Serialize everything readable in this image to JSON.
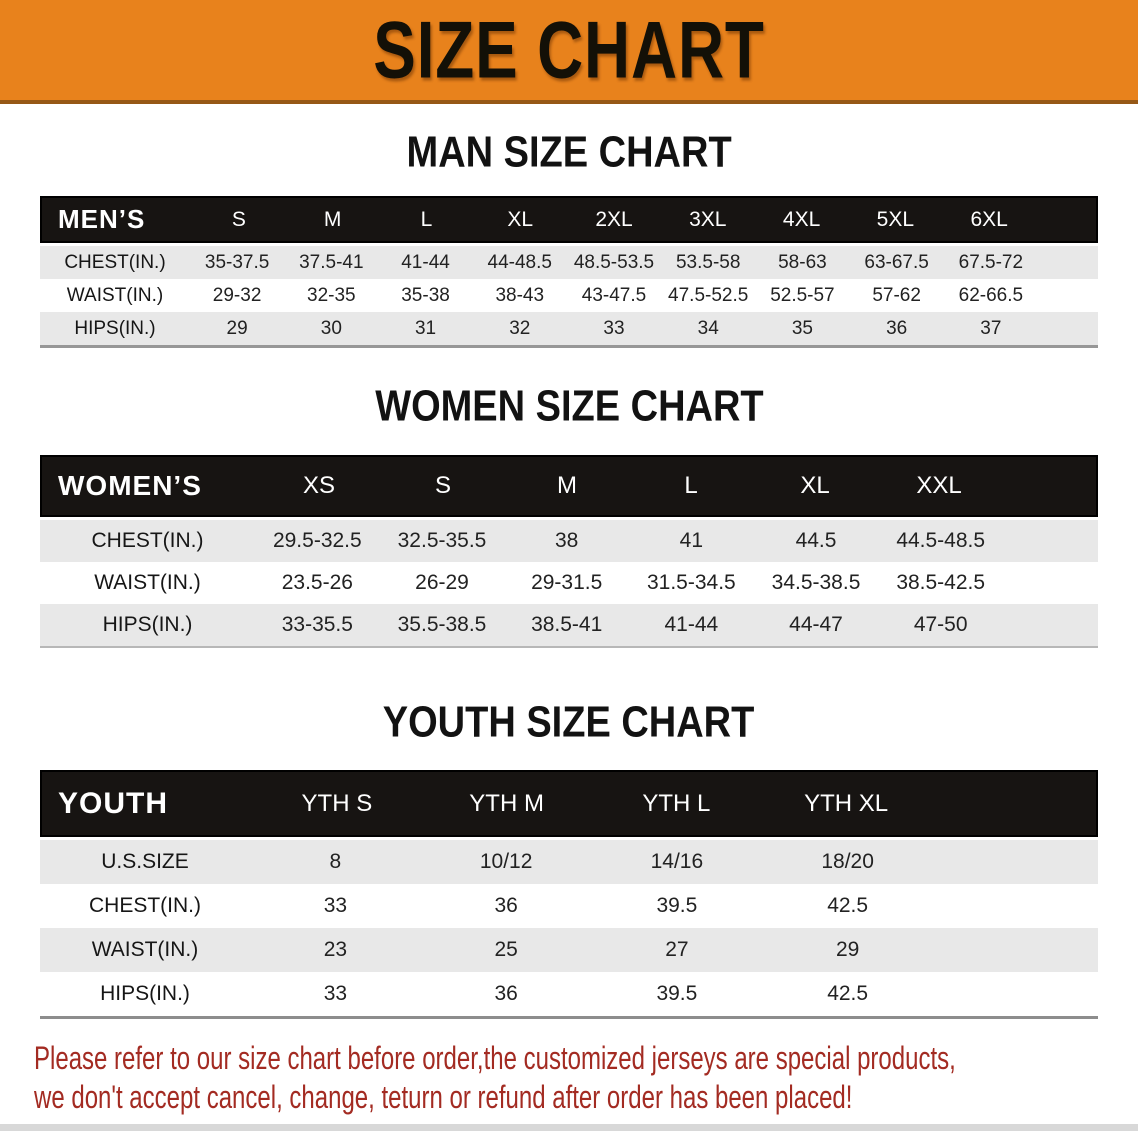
{
  "banner": {
    "title": "SIZE CHART"
  },
  "colors": {
    "banner-bg": "#E8821C",
    "banner-edge": "rgba(95,60,18,0.6)",
    "title-color": "#131007",
    "header-bg": "#171412",
    "stripe": "#E8E8E8",
    "disclaimer-color": "#A32B22"
  },
  "sections": [
    {
      "heading": "MAN SIZE CHART",
      "table": {
        "header_label": "MEN’S",
        "columns": [
          "S",
          "M",
          "L",
          "XL",
          "2XL",
          "3XL",
          "4XL",
          "5XL",
          "6XL"
        ],
        "rows": [
          {
            "label": "CHEST(IN.)",
            "values": [
              "35-37.5",
              "37.5-41",
              "41-44",
              "44-48.5",
              "48.5-53.5",
              "53.5-58",
              "58-63",
              "63-67.5",
              "67.5-72"
            ]
          },
          {
            "label": "WAIST(IN.)",
            "values": [
              "29-32",
              "32-35",
              "35-38",
              "38-43",
              "43-47.5",
              "47.5-52.5",
              "52.5-57",
              "57-62",
              "62-66.5"
            ]
          },
          {
            "label": "HIPS(IN.)",
            "values": [
              "29",
              "30",
              "31",
              "32",
              "33",
              "34",
              "35",
              "36",
              "37"
            ]
          }
        ]
      }
    },
    {
      "heading": "WOMEN SIZE CHART",
      "table": {
        "header_label": "WOMEN’S",
        "columns": [
          "XS",
          "S",
          "M",
          "L",
          "XL",
          "XXL"
        ],
        "rows": [
          {
            "label": "CHEST(IN.)",
            "values": [
              "29.5-32.5",
              "32.5-35.5",
              "38",
              "41",
              "44.5",
              "44.5-48.5"
            ]
          },
          {
            "label": "WAIST(IN.)",
            "values": [
              "23.5-26",
              "26-29",
              "29-31.5",
              "31.5-34.5",
              "34.5-38.5",
              "38.5-42.5"
            ]
          },
          {
            "label": "HIPS(IN.)",
            "values": [
              "33-35.5",
              "35.5-38.5",
              "38.5-41",
              "41-44",
              "44-47",
              "47-50"
            ]
          }
        ]
      }
    },
    {
      "heading": "YOUTH SIZE CHART",
      "table": {
        "header_label": "YOUTH",
        "columns": [
          "YTH S",
          "YTH M",
          "YTH L",
          "YTH XL"
        ],
        "rows": [
          {
            "label": "U.S.SIZE",
            "values": [
              "8",
              "10/12",
              "14/16",
              "18/20"
            ]
          },
          {
            "label": "CHEST(IN.)",
            "values": [
              "33",
              "36",
              "39.5",
              "42.5"
            ]
          },
          {
            "label": "WAIST(IN.)",
            "values": [
              "23",
              "25",
              "27",
              "29"
            ]
          },
          {
            "label": "HIPS(IN.)",
            "values": [
              "33",
              "36",
              "39.5",
              "42.5"
            ]
          }
        ]
      }
    }
  ],
  "disclaimer": {
    "line1": "Please refer to our size chart before order,the customized jerseys are special products,",
    "line2": "we don't accept cancel, change, teturn or refund after order has been placed!"
  }
}
